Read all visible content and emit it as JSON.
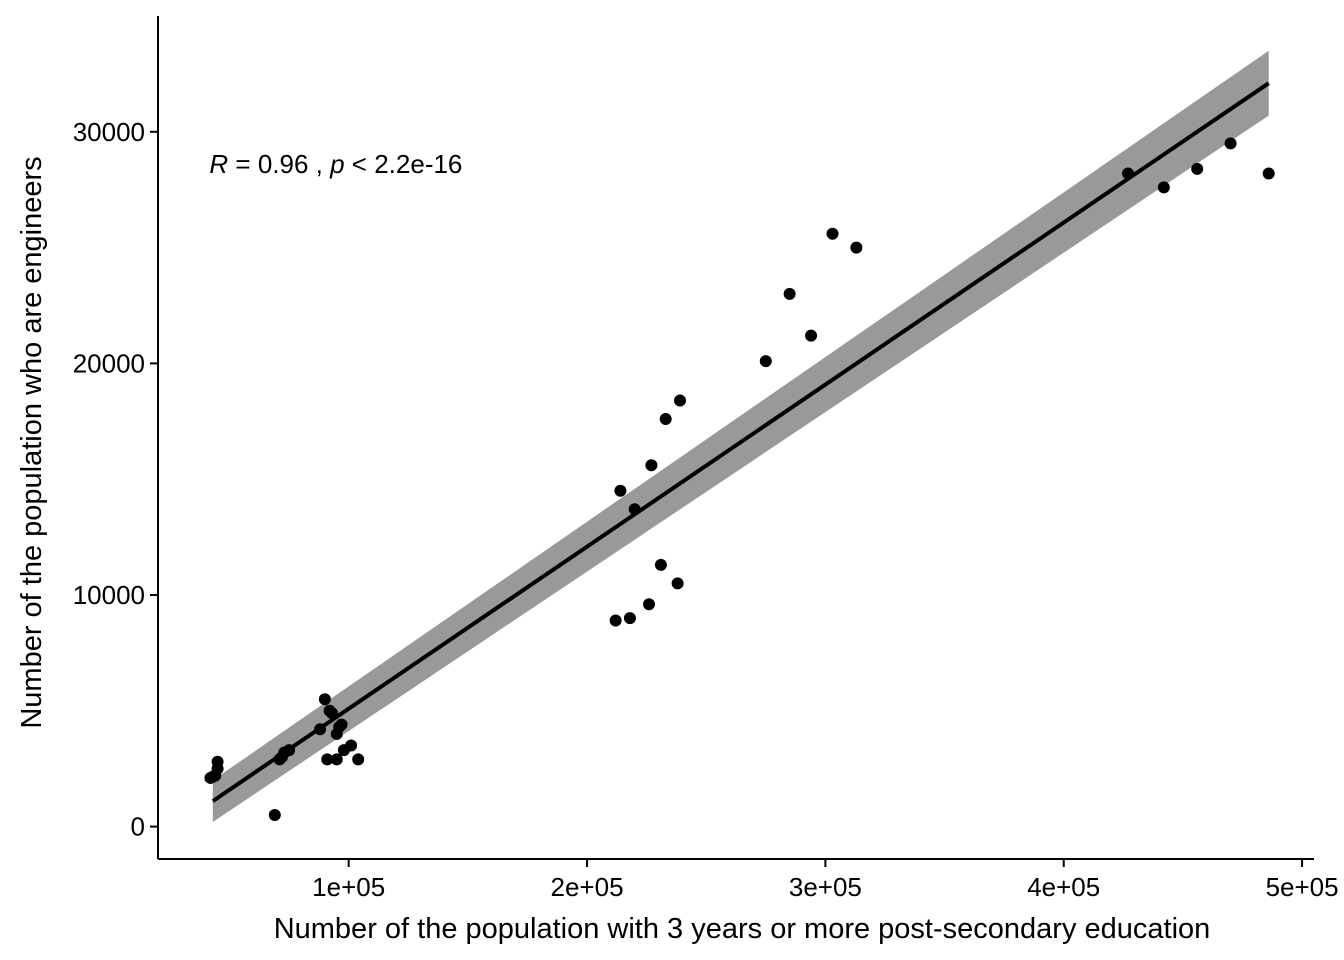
{
  "chart_data": {
    "type": "scatter",
    "xlabel": "Number of the population with 3 years or more post-secondary education",
    "ylabel": "Number of the population who are engineers",
    "xlim": [
      20000,
      505000
    ],
    "ylim": [
      -1400,
      35000
    ],
    "x_ticks": [
      100000,
      200000,
      300000,
      400000,
      500000
    ],
    "x_tick_labels": [
      "1e+05",
      "2e+05",
      "3e+05",
      "4e+05",
      "5e+05"
    ],
    "y_ticks": [
      0,
      10000,
      20000,
      30000
    ],
    "y_tick_labels": [
      "0",
      "10000",
      "20000",
      "30000"
    ],
    "annotation": {
      "r_symbol": "R",
      "r_text": " = 0.96 , ",
      "p_symbol": "p",
      "p_text": " < 2.2e-16",
      "x": 42000,
      "y": 28600
    },
    "grid": false,
    "legend": "none",
    "point_color": "#000000",
    "fit_line_color": "#000000",
    "confidence_band_color": "#999999",
    "regression": {
      "x": [
        43000,
        486000
      ],
      "y": [
        1100,
        32100
      ],
      "ci_lower": [
        200,
        30700
      ],
      "ci_upper": [
        2000,
        33500
      ]
    },
    "points": {
      "x": [
        42000,
        43000,
        44000,
        45000,
        45000,
        69000,
        71000,
        72000,
        73000,
        75000,
        88000,
        90000,
        91000,
        92000,
        93000,
        95000,
        95000,
        96000,
        97000,
        98000,
        101000,
        104000,
        212000,
        214000,
        218000,
        220000,
        226000,
        227000,
        231000,
        233000,
        238000,
        239000,
        275000,
        285000,
        294000,
        303000,
        313000,
        427000,
        442000,
        456000,
        470000,
        486000
      ],
      "y": [
        2100,
        2150,
        2200,
        2500,
        2800,
        500,
        2900,
        3000,
        3200,
        3300,
        4200,
        5500,
        2900,
        5000,
        4900,
        2900,
        4000,
        4300,
        4400,
        3300,
        3500,
        2900,
        8900,
        14500,
        9000,
        13700,
        9600,
        15600,
        11300,
        17600,
        10500,
        18400,
        20100,
        23000,
        21200,
        25600,
        25000,
        28200,
        27600,
        28400,
        29500,
        28200
      ]
    }
  }
}
